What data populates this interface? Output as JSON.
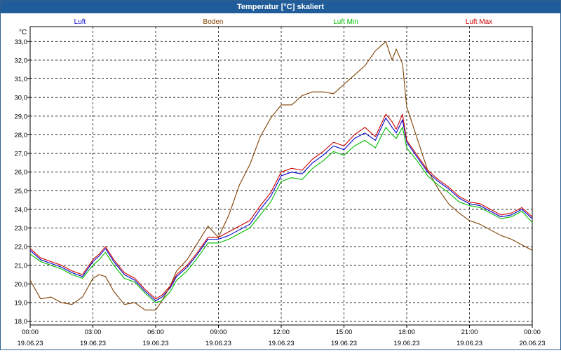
{
  "window": {
    "title": "Temperatur [°C] skaliert"
  },
  "chart_data": {
    "type": "line",
    "ylabel": "°C",
    "ylim": [
      17.8,
      33.8
    ],
    "yticks": [
      "18,0",
      "19,0",
      "20,0",
      "21,0",
      "22,0",
      "23,0",
      "24,0",
      "25,0",
      "26,0",
      "27,0",
      "28,0",
      "29,0",
      "30,0",
      "31,0",
      "32,0",
      "33,0"
    ],
    "ytick_values": [
      18,
      19,
      20,
      21,
      22,
      23,
      24,
      25,
      26,
      27,
      28,
      29,
      30,
      31,
      32,
      33
    ],
    "xlim": [
      0,
      24
    ],
    "xticks": [
      {
        "time": "00:00",
        "date": "19.06.23",
        "hour": 0
      },
      {
        "time": "03:00",
        "date": "19.06.23",
        "hour": 3
      },
      {
        "time": "06:00",
        "date": "19.06.23",
        "hour": 6
      },
      {
        "time": "09:00",
        "date": "19.06.23",
        "hour": 9
      },
      {
        "time": "12:00",
        "date": "19.06.23",
        "hour": 12
      },
      {
        "time": "15:00",
        "date": "19.06.23",
        "hour": 15
      },
      {
        "time": "18:00",
        "date": "19.06.23",
        "hour": 18
      },
      {
        "time": "21:00",
        "date": "19.06.23",
        "hour": 21
      },
      {
        "time": "00:00",
        "date": "20.06.23",
        "hour": 24
      }
    ],
    "grid": true,
    "legend_position": "top",
    "series": [
      {
        "name": "Luft",
        "color": "#0000cc",
        "points": [
          [
            0,
            21.8
          ],
          [
            0.5,
            21.3
          ],
          [
            1,
            21.1
          ],
          [
            1.5,
            20.9
          ],
          [
            2,
            20.6
          ],
          [
            2.5,
            20.4
          ],
          [
            3,
            21.2
          ],
          [
            3.3,
            21.5
          ],
          [
            3.6,
            21.9
          ],
          [
            4,
            21.2
          ],
          [
            4.5,
            20.5
          ],
          [
            5,
            20.2
          ],
          [
            5.5,
            19.6
          ],
          [
            6,
            19.1
          ],
          [
            6.3,
            19.3
          ],
          [
            6.7,
            19.8
          ],
          [
            7,
            20.4
          ],
          [
            7.5,
            20.9
          ],
          [
            8,
            21.6
          ],
          [
            8.5,
            22.4
          ],
          [
            9,
            22.4
          ],
          [
            9.5,
            22.6
          ],
          [
            10,
            22.9
          ],
          [
            10.5,
            23.2
          ],
          [
            11,
            24.0
          ],
          [
            11.5,
            24.7
          ],
          [
            12,
            25.8
          ],
          [
            12.5,
            26.0
          ],
          [
            13,
            25.9
          ],
          [
            13.5,
            26.5
          ],
          [
            14,
            26.9
          ],
          [
            14.5,
            27.4
          ],
          [
            15,
            27.2
          ],
          [
            15.5,
            27.8
          ],
          [
            16,
            28.1
          ],
          [
            16.5,
            27.7
          ],
          [
            17,
            28.9
          ],
          [
            17.3,
            28.4
          ],
          [
            17.5,
            28.1
          ],
          [
            17.8,
            28.8
          ],
          [
            18,
            27.6
          ],
          [
            18.5,
            26.8
          ],
          [
            19,
            26.0
          ],
          [
            19.5,
            25.5
          ],
          [
            20,
            25.1
          ],
          [
            20.5,
            24.6
          ],
          [
            21,
            24.3
          ],
          [
            21.5,
            24.2
          ],
          [
            22,
            23.9
          ],
          [
            22.5,
            23.6
          ],
          [
            23,
            23.7
          ],
          [
            23.5,
            24.0
          ],
          [
            24,
            23.5
          ]
        ]
      },
      {
        "name": "Boden",
        "color": "#804000",
        "points": [
          [
            0,
            20.2
          ],
          [
            0.5,
            19.2
          ],
          [
            1,
            19.3
          ],
          [
            1.5,
            19.0
          ],
          [
            2,
            18.9
          ],
          [
            2.5,
            19.3
          ],
          [
            3,
            20.3
          ],
          [
            3.3,
            20.5
          ],
          [
            3.6,
            20.4
          ],
          [
            4,
            19.6
          ],
          [
            4.5,
            18.9
          ],
          [
            5,
            19.0
          ],
          [
            5.5,
            18.6
          ],
          [
            6,
            18.6
          ],
          [
            6.3,
            19.1
          ],
          [
            6.7,
            19.9
          ],
          [
            7,
            20.7
          ],
          [
            7.5,
            21.3
          ],
          [
            8,
            22.2
          ],
          [
            8.5,
            23.1
          ],
          [
            9,
            22.5
          ],
          [
            9.5,
            23.7
          ],
          [
            10,
            25.3
          ],
          [
            10.5,
            26.4
          ],
          [
            11,
            27.9
          ],
          [
            11.5,
            28.9
          ],
          [
            12,
            29.6
          ],
          [
            12.5,
            29.6
          ],
          [
            13,
            30.1
          ],
          [
            13.5,
            30.3
          ],
          [
            14,
            30.3
          ],
          [
            14.5,
            30.2
          ],
          [
            15,
            30.7
          ],
          [
            15.5,
            31.2
          ],
          [
            16,
            31.7
          ],
          [
            16.5,
            32.5
          ],
          [
            17,
            33.0
          ],
          [
            17.3,
            32.0
          ],
          [
            17.5,
            32.6
          ],
          [
            17.8,
            31.8
          ],
          [
            18,
            29.5
          ],
          [
            18.5,
            27.8
          ],
          [
            19,
            26.1
          ],
          [
            19.5,
            25.1
          ],
          [
            20,
            24.3
          ],
          [
            20.5,
            23.8
          ],
          [
            21,
            23.4
          ],
          [
            21.5,
            23.2
          ],
          [
            22,
            22.9
          ],
          [
            22.5,
            22.6
          ],
          [
            23,
            22.4
          ],
          [
            23.5,
            22.1
          ],
          [
            24,
            21.8
          ]
        ]
      },
      {
        "name": "Luft Min",
        "color": "#00bb00",
        "points": [
          [
            0,
            21.6
          ],
          [
            0.5,
            21.2
          ],
          [
            1,
            21.0
          ],
          [
            1.5,
            20.8
          ],
          [
            2,
            20.5
          ],
          [
            2.5,
            20.3
          ],
          [
            3,
            21.0
          ],
          [
            3.3,
            21.3
          ],
          [
            3.6,
            21.7
          ],
          [
            4,
            21.0
          ],
          [
            4.5,
            20.3
          ],
          [
            5,
            20.1
          ],
          [
            5.5,
            19.5
          ],
          [
            6,
            19.0
          ],
          [
            6.3,
            19.1
          ],
          [
            6.7,
            19.6
          ],
          [
            7,
            20.2
          ],
          [
            7.5,
            20.7
          ],
          [
            8,
            21.4
          ],
          [
            8.5,
            22.2
          ],
          [
            9,
            22.2
          ],
          [
            9.5,
            22.4
          ],
          [
            10,
            22.7
          ],
          [
            10.5,
            23.0
          ],
          [
            11,
            23.7
          ],
          [
            11.5,
            24.4
          ],
          [
            12,
            25.5
          ],
          [
            12.5,
            25.7
          ],
          [
            13,
            25.6
          ],
          [
            13.5,
            26.2
          ],
          [
            14,
            26.6
          ],
          [
            14.5,
            27.1
          ],
          [
            15,
            26.9
          ],
          [
            15.5,
            27.4
          ],
          [
            16,
            27.7
          ],
          [
            16.5,
            27.3
          ],
          [
            17,
            28.4
          ],
          [
            17.3,
            28.0
          ],
          [
            17.5,
            27.8
          ],
          [
            17.8,
            28.4
          ],
          [
            18,
            27.3
          ],
          [
            18.5,
            26.6
          ],
          [
            19,
            25.8
          ],
          [
            19.5,
            25.3
          ],
          [
            20,
            24.9
          ],
          [
            20.5,
            24.4
          ],
          [
            21,
            24.2
          ],
          [
            21.5,
            24.1
          ],
          [
            22,
            23.8
          ],
          [
            22.5,
            23.5
          ],
          [
            23,
            23.6
          ],
          [
            23.5,
            23.9
          ],
          [
            24,
            23.3
          ]
        ]
      },
      {
        "name": "Luft Max",
        "color": "#cc0000",
        "points": [
          [
            0,
            21.9
          ],
          [
            0.5,
            21.4
          ],
          [
            1,
            21.2
          ],
          [
            1.5,
            21.0
          ],
          [
            2,
            20.7
          ],
          [
            2.5,
            20.5
          ],
          [
            3,
            21.3
          ],
          [
            3.3,
            21.6
          ],
          [
            3.6,
            22.0
          ],
          [
            4,
            21.3
          ],
          [
            4.5,
            20.6
          ],
          [
            5,
            20.3
          ],
          [
            5.5,
            19.7
          ],
          [
            6,
            19.2
          ],
          [
            6.3,
            19.4
          ],
          [
            6.7,
            19.9
          ],
          [
            7,
            20.5
          ],
          [
            7.5,
            21.0
          ],
          [
            8,
            21.7
          ],
          [
            8.5,
            22.5
          ],
          [
            9,
            22.5
          ],
          [
            9.5,
            22.8
          ],
          [
            10,
            23.1
          ],
          [
            10.5,
            23.4
          ],
          [
            11,
            24.2
          ],
          [
            11.5,
            24.9
          ],
          [
            12,
            26.0
          ],
          [
            12.5,
            26.2
          ],
          [
            13,
            26.1
          ],
          [
            13.5,
            26.7
          ],
          [
            14,
            27.1
          ],
          [
            14.5,
            27.6
          ],
          [
            15,
            27.4
          ],
          [
            15.5,
            28.0
          ],
          [
            16,
            28.4
          ],
          [
            16.5,
            27.9
          ],
          [
            17,
            29.1
          ],
          [
            17.3,
            28.7
          ],
          [
            17.5,
            28.3
          ],
          [
            17.8,
            29.1
          ],
          [
            18,
            27.7
          ],
          [
            18.5,
            26.9
          ],
          [
            19,
            26.1
          ],
          [
            19.5,
            25.6
          ],
          [
            20,
            25.2
          ],
          [
            20.5,
            24.7
          ],
          [
            21,
            24.4
          ],
          [
            21.5,
            24.3
          ],
          [
            22,
            24.0
          ],
          [
            22.5,
            23.7
          ],
          [
            23,
            23.8
          ],
          [
            23.5,
            24.1
          ],
          [
            24,
            23.6
          ]
        ]
      }
    ]
  }
}
